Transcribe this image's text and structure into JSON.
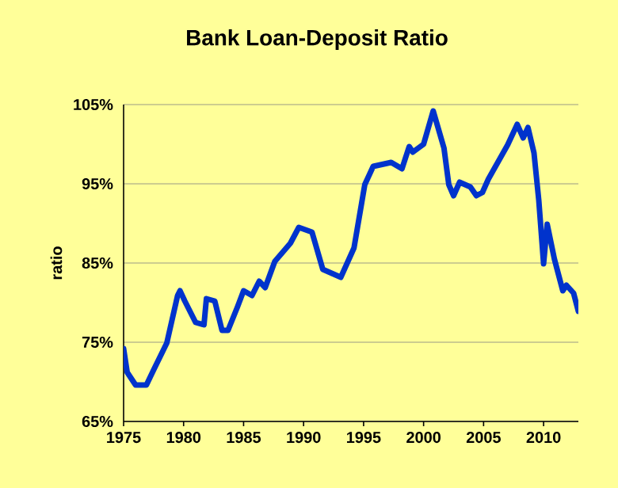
{
  "chart_data": {
    "type": "line",
    "title": "Bank Loan-Deposit Ratio",
    "ylabel": "ratio",
    "xlim": [
      1975,
      2012.9
    ],
    "xticks": [
      1975,
      1980,
      1985,
      1990,
      1995,
      2000,
      2005,
      2010
    ],
    "ylim": [
      65,
      105
    ],
    "yticks": [
      {
        "value": 65,
        "label": "65%"
      },
      {
        "value": 75,
        "label": "75%"
      },
      {
        "value": 85,
        "label": "85%"
      },
      {
        "value": 95,
        "label": "95%"
      },
      {
        "value": 105,
        "label": "105%"
      }
    ],
    "grid": "y",
    "marker": "none",
    "line_style": "solid",
    "series": [
      {
        "color": "#0033cc",
        "x": [
          1975.0,
          1975.3,
          1976.0,
          1976.9,
          1977.5,
          1978.6,
          1979.5,
          1979.7,
          1980.1,
          1981.0,
          1981.7,
          1981.9,
          1982.6,
          1983.2,
          1983.7,
          1984.5,
          1985.0,
          1985.7,
          1986.3,
          1986.8,
          1987.6,
          1988.9,
          1989.6,
          1990.7,
          1991.6,
          1993.1,
          1994.2,
          1995.1,
          1995.8,
          1997.3,
          1998.2,
          1998.8,
          1999.1,
          2000.0,
          2000.8,
          2001.7,
          2002.1,
          2002.5,
          2003.0,
          2003.9,
          2004.4,
          2004.9,
          2005.4,
          2007.0,
          2007.8,
          2008.3,
          2008.7,
          2009.2,
          2009.6,
          2010.0,
          2010.3,
          2010.9,
          2011.6,
          2011.9,
          2012.5,
          2012.9
        ],
        "values": [
          74.2,
          71.2,
          69.6,
          69.6,
          71.5,
          74.9,
          80.9,
          81.5,
          80.2,
          77.5,
          77.2,
          80.5,
          80.2,
          76.5,
          76.5,
          79.5,
          81.5,
          80.9,
          82.7,
          81.9,
          85.2,
          87.5,
          89.5,
          88.9,
          84.2,
          83.2,
          86.9,
          94.9,
          97.2,
          97.7,
          96.9,
          99.7,
          99.0,
          100.0,
          104.2,
          99.5,
          94.9,
          93.5,
          95.2,
          94.6,
          93.5,
          93.9,
          95.6,
          99.9,
          102.5,
          100.8,
          102.1,
          98.9,
          92.9,
          84.9,
          89.9,
          85.5,
          81.5,
          82.2,
          81.2,
          78.9
        ]
      }
    ]
  }
}
